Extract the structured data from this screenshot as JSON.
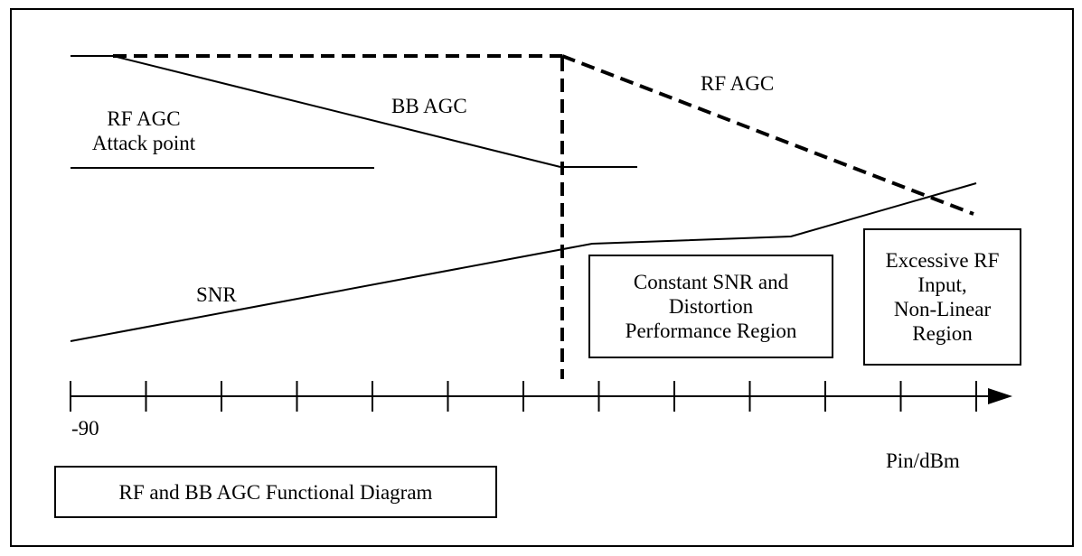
{
  "labels": {
    "rf_agc_attack": [
      "RF AGC",
      "Attack point"
    ],
    "bb_agc": "BB AGC",
    "rf_agc": "RF AGC",
    "snr": "SNR",
    "axis_start": "-90",
    "axis_unit": "Pin/dBm"
  },
  "boxes": {
    "constant_region": [
      "Constant SNR and",
      "Distortion",
      "Performance Region"
    ],
    "nonlinear_region": [
      "Excessive RF",
      "Input,",
      "Non-Linear",
      "Region"
    ],
    "title": "RF and BB AGC Functional Diagram"
  },
  "axis": {
    "tick_count": 13
  }
}
